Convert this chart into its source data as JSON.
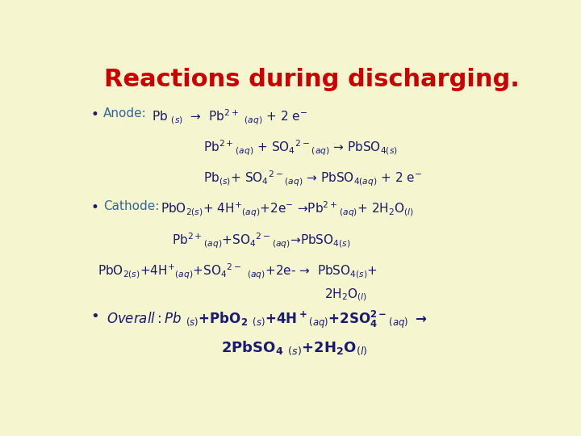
{
  "background_color": "#f5f5d0",
  "title": "Reactions during discharging.",
  "title_color": "#cc0000",
  "title_fontsize": 22,
  "content_color_blue": "#336699",
  "content_color_dark": "#1a1a6e",
  "content_color_red": "#cc0000",
  "lfs": 11
}
